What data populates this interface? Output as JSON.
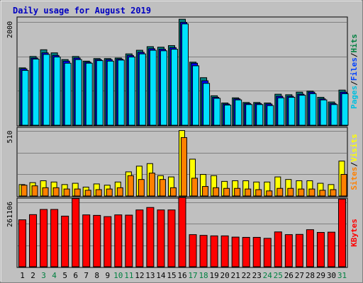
{
  "chart_data": [
    {
      "type": "bar",
      "title": "Daily usage for August 2019",
      "ylabel_parts": [
        {
          "text": "Pages",
          "color": "#00c0e0"
        },
        {
          "text": "/",
          "color": "#000000"
        },
        {
          "text": "Files",
          "color": "#0040ff"
        },
        {
          "text": "/",
          "color": "#000000"
        },
        {
          "text": "Hits",
          "color": "#008040"
        }
      ],
      "ymax_label": "2000",
      "ylim": [
        0,
        2080
      ],
      "gridlines": [
        2000,
        1333,
        667
      ],
      "categories": [
        "1",
        "2",
        "3",
        "4",
        "5",
        "6",
        "7",
        "8",
        "9",
        "10",
        "11",
        "12",
        "13",
        "14",
        "15",
        "16",
        "17",
        "18",
        "19",
        "20",
        "21",
        "22",
        "23",
        "24",
        "25",
        "26",
        "27",
        "28",
        "29",
        "30",
        "31"
      ],
      "series": [
        {
          "name": "Hits",
          "color": "#008080",
          "values": [
            1110,
            1330,
            1460,
            1400,
            1270,
            1330,
            1240,
            1290,
            1290,
            1300,
            1380,
            1450,
            1520,
            1510,
            1540,
            2050,
            1220,
            920,
            570,
            430,
            530,
            440,
            440,
            430,
            600,
            590,
            640,
            660,
            540,
            450,
            680
          ]
        },
        {
          "name": "Files",
          "color": "#0000ff",
          "values": [
            1090,
            1300,
            1400,
            1350,
            1240,
            1300,
            1220,
            1270,
            1270,
            1280,
            1350,
            1410,
            1480,
            1470,
            1500,
            1990,
            1200,
            860,
            540,
            410,
            510,
            420,
            420,
            410,
            560,
            560,
            600,
            640,
            510,
            420,
            640
          ]
        },
        {
          "name": "Pages",
          "color": "#00e0ff",
          "values": [
            1060,
            1280,
            1370,
            1320,
            1200,
            1270,
            1200,
            1250,
            1240,
            1260,
            1320,
            1380,
            1450,
            1440,
            1470,
            1960,
            1150,
            810,
            520,
            390,
            490,
            400,
            400,
            380,
            530,
            540,
            580,
            610,
            490,
            400,
            610
          ]
        }
      ]
    },
    {
      "type": "bar",
      "ylabel_parts": [
        {
          "text": "Sites",
          "color": "#ff8000"
        },
        {
          "text": "/",
          "color": "#000000"
        },
        {
          "text": "Visits",
          "color": "#ffff00"
        }
      ],
      "ymax_label": "510",
      "ylim": [
        0,
        535
      ],
      "gridlines": [
        510,
        340,
        170
      ],
      "categories": [
        "1",
        "2",
        "3",
        "4",
        "5",
        "6",
        "7",
        "8",
        "9",
        "10",
        "11",
        "12",
        "13",
        "14",
        "15",
        "16",
        "17",
        "18",
        "19",
        "20",
        "21",
        "22",
        "23",
        "24",
        "25",
        "26",
        "27",
        "28",
        "29",
        "30",
        "31"
      ],
      "series": [
        {
          "name": "Visits",
          "color": "#ffff00",
          "values": [
            90,
            105,
            120,
            110,
            90,
            100,
            70,
            95,
            85,
            110,
            190,
            235,
            255,
            160,
            150,
            515,
            290,
            170,
            160,
            115,
            120,
            120,
            110,
            110,
            150,
            130,
            120,
            120,
            100,
            90,
            275
          ]
        },
        {
          "name": "Sites",
          "color": "#ff8000",
          "values": [
            85,
            80,
            65,
            65,
            55,
            55,
            45,
            50,
            55,
            65,
            160,
            130,
            180,
            130,
            65,
            460,
            140,
            75,
            65,
            60,
            60,
            55,
            50,
            40,
            60,
            60,
            55,
            55,
            45,
            50,
            170
          ]
        }
      ]
    },
    {
      "type": "bar",
      "ylabel_parts": [
        {
          "text": "KBytes",
          "color": "#ff0000"
        }
      ],
      "ymax_label": "261106",
      "ylim": [
        0,
        275000
      ],
      "gridlines": [
        261106,
        174071,
        87035
      ],
      "categories": [
        "1",
        "2",
        "3",
        "4",
        "5",
        "6",
        "7",
        "8",
        "9",
        "10",
        "11",
        "12",
        "13",
        "14",
        "15",
        "16",
        "17",
        "18",
        "19",
        "20",
        "21",
        "22",
        "23",
        "24",
        "25",
        "26",
        "27",
        "28",
        "29",
        "30",
        "31"
      ],
      "weekend_days": [
        "3",
        "4",
        "10",
        "11",
        "17",
        "18",
        "24",
        "25",
        "31"
      ],
      "series": [
        {
          "name": "KBytes",
          "color": "#ff0000",
          "values": [
            190000,
            211000,
            232000,
            232000,
            205000,
            276000,
            210000,
            208000,
            203000,
            210000,
            209000,
            230000,
            240000,
            230000,
            230000,
            280000,
            130000,
            127000,
            125000,
            125000,
            120000,
            119000,
            119000,
            115000,
            141000,
            130000,
            131000,
            150000,
            139000,
            140000,
            274000
          ]
        }
      ]
    }
  ]
}
